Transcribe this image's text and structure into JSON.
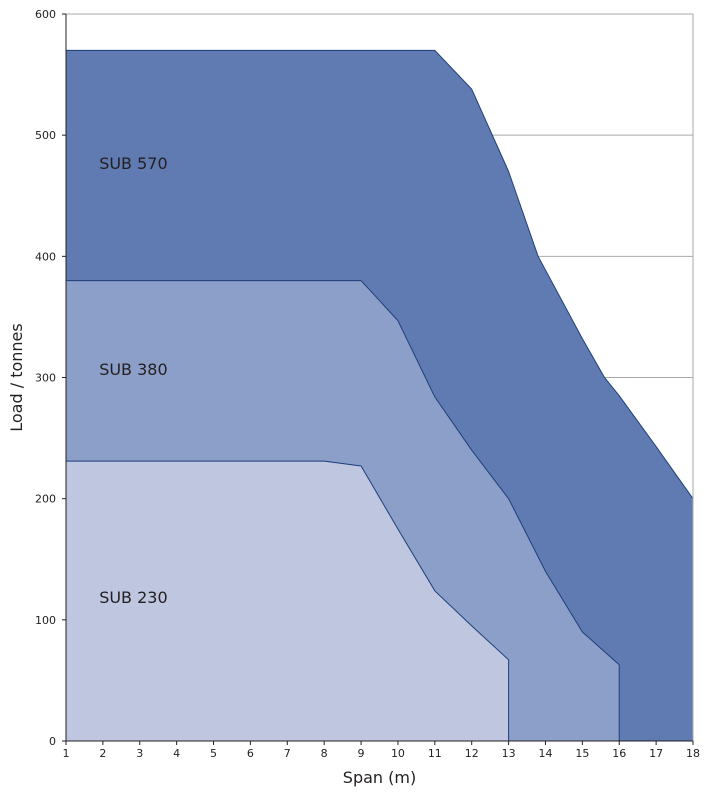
{
  "chart_data": {
    "type": "area",
    "xlabel": "Span (m)",
    "ylabel": "Load / tonnes",
    "xlim": [
      1,
      18
    ],
    "ylim": [
      0,
      600
    ],
    "x_ticks": [
      1,
      2,
      3,
      4,
      5,
      6,
      7,
      8,
      9,
      10,
      11,
      12,
      13,
      14,
      15,
      16,
      17,
      18
    ],
    "y_ticks": [
      0,
      100,
      200,
      300,
      400,
      500,
      600
    ],
    "grid": "horizontal",
    "series": [
      {
        "name": "SUB 570",
        "color": "#5f7bb1",
        "points": [
          [
            1,
            570
          ],
          [
            11,
            570
          ],
          [
            12,
            538
          ],
          [
            13,
            470
          ],
          [
            13.8,
            400
          ],
          [
            15,
            332
          ],
          [
            15.6,
            300
          ],
          [
            16,
            285
          ],
          [
            17,
            243
          ],
          [
            18,
            200
          ],
          [
            18,
            0
          ],
          [
            1,
            0
          ]
        ]
      },
      {
        "name": "SUB 380",
        "color": "#8b9fc9",
        "points": [
          [
            1,
            380
          ],
          [
            9,
            380
          ],
          [
            10,
            347
          ],
          [
            11,
            284
          ],
          [
            12,
            240
          ],
          [
            13,
            200
          ],
          [
            14,
            140
          ],
          [
            15,
            90
          ],
          [
            16,
            63
          ],
          [
            16,
            0
          ],
          [
            1,
            0
          ]
        ]
      },
      {
        "name": "SUB 230",
        "color": "#bec6e0",
        "points": [
          [
            1,
            231
          ],
          [
            8,
            231
          ],
          [
            9,
            227
          ],
          [
            10,
            175
          ],
          [
            11,
            124
          ],
          [
            12,
            95
          ],
          [
            13,
            67
          ],
          [
            13,
            0
          ],
          [
            1,
            0
          ]
        ]
      }
    ],
    "label_positions": [
      {
        "name": "SUB 570",
        "x": 1.9,
        "y": 472
      },
      {
        "name": "SUB 380",
        "x": 1.9,
        "y": 302
      },
      {
        "name": "SUB 230",
        "x": 1.9,
        "y": 114
      }
    ]
  }
}
